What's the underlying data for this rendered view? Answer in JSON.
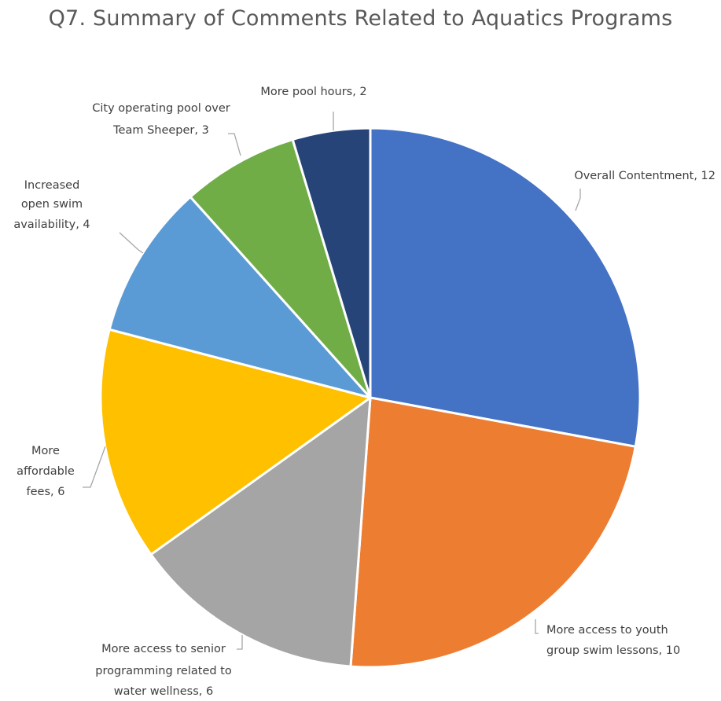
{
  "chart_data": {
    "type": "pie",
    "title": "Q7. Summary of Comments Related to Aquatics Programs",
    "slices": [
      {
        "label": "Overall Contentment, 12",
        "category": "Overall Contentment",
        "value": 12,
        "color": "#4472C4"
      },
      {
        "label": "More access to youth group swim lessons, 10",
        "category": "More access to youth group swim lessons",
        "value": 10,
        "color": "#ED7D31"
      },
      {
        "label": "More access to senior programming related to water wellness, 6",
        "category": "More access to senior programming related to water wellness",
        "value": 6,
        "color": "#A5A5A5"
      },
      {
        "label": "More affordable fees, 6",
        "category": "More affordable fees",
        "value": 6,
        "color": "#FFC000"
      },
      {
        "label": "Increased open swim availability, 4",
        "category": "Increased open swim availability",
        "value": 4,
        "color": "#5B9BD5"
      },
      {
        "label": "City operating pool over Team Sheeper, 3",
        "category": "City operating pool over Team Sheeper",
        "value": 3,
        "color": "#70AD47"
      },
      {
        "label": "More pool hours, 2",
        "category": "More pool hours",
        "value": 2,
        "color": "#264478"
      }
    ],
    "legend": "none",
    "data_labels": "outside-with-leader-lines"
  }
}
